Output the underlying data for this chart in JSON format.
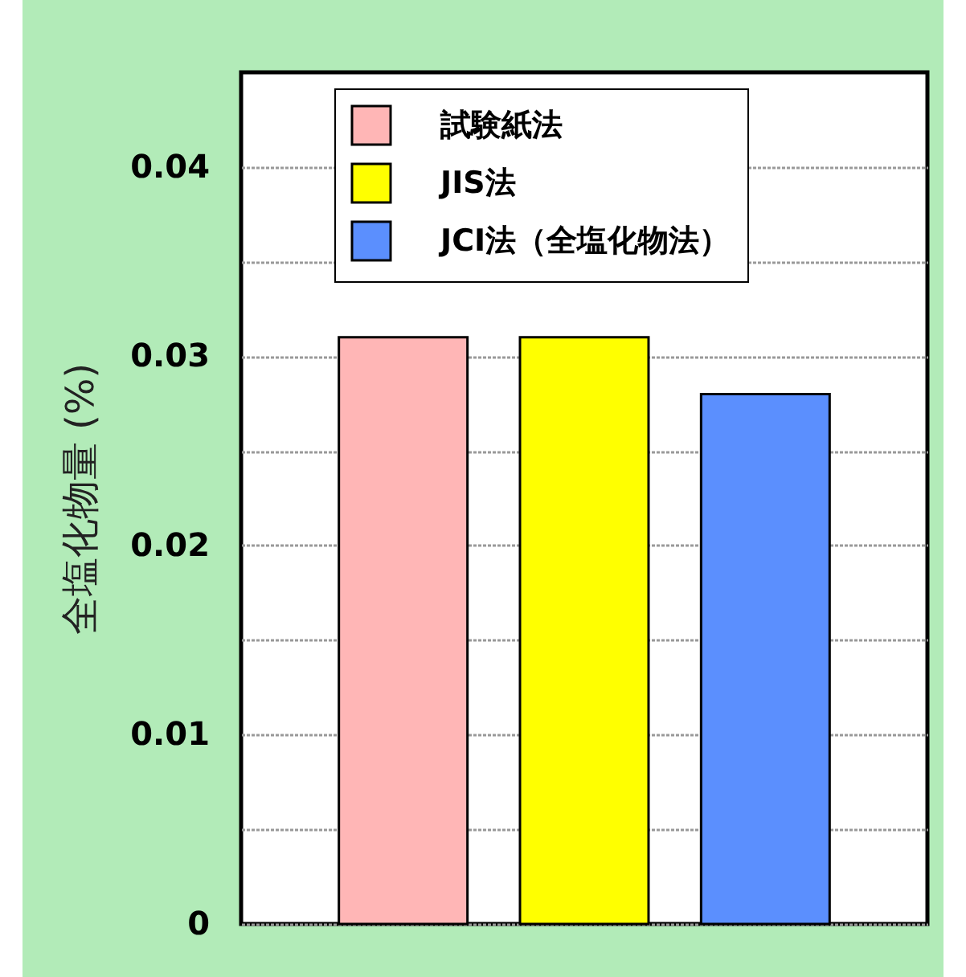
{
  "chart_data": {
    "type": "bar",
    "ylabel": "全塩化物量 (%)",
    "categories": [
      null,
      null,
      null
    ],
    "series": [
      {
        "name": "試験紙法",
        "color": "#ffb6b6",
        "values": [
          0.031,
          null,
          null
        ]
      },
      {
        "name": "JIS法",
        "color": "#ffff00",
        "values": [
          null,
          0.031,
          null
        ]
      },
      {
        "name": "JCI法（全塩化物法）",
        "color": "#5b8ffe",
        "values": [
          null,
          null,
          0.028
        ]
      }
    ],
    "ylim": [
      0,
      0.045
    ],
    "yticks": [
      0,
      {
        "value": 0.005,
        "label": null
      },
      0.01,
      {
        "value": 0.015,
        "label": null
      },
      0.02,
      {
        "value": 0.025,
        "label": null
      },
      0.03,
      {
        "value": 0.035,
        "label": null
      },
      0.04
    ],
    "grid": true,
    "legend": "top",
    "tick_labels": "y"
  }
}
